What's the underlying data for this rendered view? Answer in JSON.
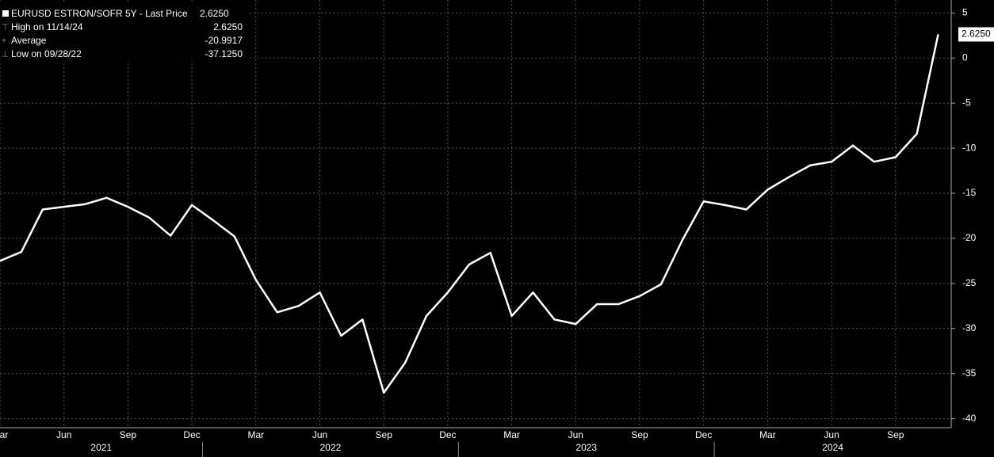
{
  "chart_data": {
    "type": "line",
    "legend": {
      "title": "EURUSD ESTRON/SOFR 5Y - Last Price",
      "title_value": "2.6250",
      "stats": [
        {
          "label": "High on 11/14/24",
          "value": "2.6250"
        },
        {
          "label": "Average",
          "value": "-20.9917"
        },
        {
          "label": "Low on 09/28/22",
          "value": "-37.1250"
        }
      ]
    },
    "x": [
      "2021-03",
      "2021-04",
      "2021-05",
      "2021-06",
      "2021-07",
      "2021-08",
      "2021-09",
      "2021-10",
      "2021-11",
      "2021-12",
      "2022-01",
      "2022-02",
      "2022-03",
      "2022-04",
      "2022-05",
      "2022-06",
      "2022-07",
      "2022-08",
      "2022-09",
      "2022-10",
      "2022-11",
      "2022-12",
      "2023-01",
      "2023-02",
      "2023-03",
      "2023-04",
      "2023-05",
      "2023-06",
      "2023-07",
      "2023-08",
      "2023-09",
      "2023-10",
      "2023-11",
      "2023-12",
      "2024-01",
      "2024-02",
      "2024-03",
      "2024-04",
      "2024-05",
      "2024-06",
      "2024-07",
      "2024-08",
      "2024-09",
      "2024-10",
      "2024-11"
    ],
    "series": [
      {
        "name": "EURUSD ESTRON/SOFR 5Y",
        "color": "#ffffff",
        "values": [
          -22.5,
          -21.5,
          -16.8,
          -16.5,
          -16.2,
          -15.5,
          -16.5,
          -17.7,
          -19.7,
          -16.3,
          -18,
          -19.8,
          -24.6,
          -28.2,
          -27.5,
          -26,
          -30.8,
          -29,
          -37.125,
          -33.8,
          -28.6,
          -26,
          -22.9,
          -21.6,
          -28.6,
          -26,
          -29,
          -29.5,
          -27.3,
          -27.3,
          -26.4,
          -25.1,
          -20.2,
          -15.9,
          -16.3,
          -16.8,
          -14.6,
          -13.2,
          -11.9,
          -11.5,
          -9.7,
          -11.5,
          -11,
          -8.4,
          2.625
        ],
        "last_label": "2.6250"
      }
    ],
    "xticks": [
      {
        "value": "2021-03",
        "label": "Mar"
      },
      {
        "value": "2021-06",
        "label": "Jun"
      },
      {
        "value": "2021-09",
        "label": "Sep"
      },
      {
        "value": "2021-12",
        "label": "Dec"
      },
      {
        "value": "2022-03",
        "label": "Mar"
      },
      {
        "value": "2022-06",
        "label": "Jun"
      },
      {
        "value": "2022-09",
        "label": "Sep"
      },
      {
        "value": "2022-12",
        "label": "Dec"
      },
      {
        "value": "2023-03",
        "label": "Mar"
      },
      {
        "value": "2023-06",
        "label": "Jun"
      },
      {
        "value": "2023-09",
        "label": "Sep"
      },
      {
        "value": "2023-12",
        "label": "Dec"
      },
      {
        "value": "2024-03",
        "label": "Mar"
      },
      {
        "value": "2024-06",
        "label": "Jun"
      },
      {
        "value": "2024-09",
        "label": "Sep"
      }
    ],
    "x_groups": [
      "2021",
      "2022",
      "2023",
      "2024"
    ],
    "ylim": [
      -41,
      6
    ],
    "yticks": [
      5,
      0,
      -5,
      -10,
      -15,
      -20,
      -25,
      -30,
      -35,
      -40
    ],
    "grid": true
  }
}
